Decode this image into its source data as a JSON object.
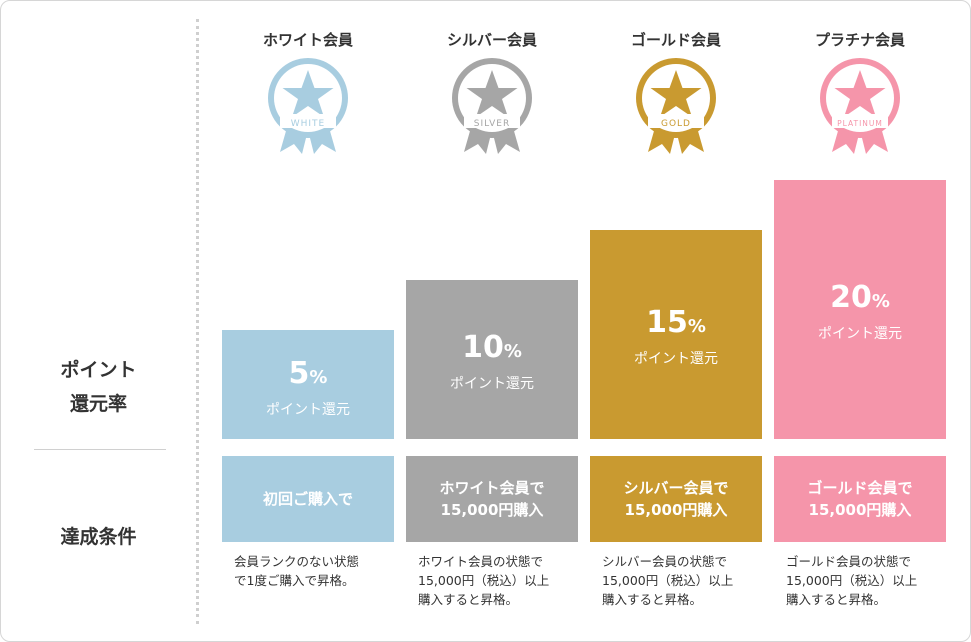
{
  "labels": {
    "rate_line1": "ポイント",
    "rate_line2": "還元率",
    "condition": "達成条件"
  },
  "tiers": [
    {
      "name": "ホワイト会員",
      "badge_text": "WHITE",
      "color": "#a8cde0",
      "rate_value": "5",
      "rate_unit": "%",
      "rate_label": "ポイント還元",
      "condition_line1": "初回ご購入で",
      "condition_line2": "",
      "description": "会員ランクのない状態\nで1度ご購入で昇格。",
      "rate_percent": 5
    },
    {
      "name": "シルバー会員",
      "badge_text": "SILVER",
      "color": "#a6a6a6",
      "rate_value": "10",
      "rate_unit": "%",
      "rate_label": "ポイント還元",
      "condition_line1": "ホワイト会員で",
      "condition_line2": "15,000円購入",
      "description": "ホワイト会員の状態で\n15,000円（税込）以上\n購入すると昇格。",
      "rate_percent": 10
    },
    {
      "name": "ゴールド会員",
      "badge_text": "GOLD",
      "color": "#c99a30",
      "rate_value": "15",
      "rate_unit": "%",
      "rate_label": "ポイント還元",
      "condition_line1": "シルバー会員で",
      "condition_line2": "15,000円購入",
      "description": "シルバー会員の状態で\n15,000円（税込）以上\n購入すると昇格。",
      "rate_percent": 15
    },
    {
      "name": "プラチナ会員",
      "badge_text": "PLATINUM",
      "color": "#f595aa",
      "rate_value": "20",
      "rate_unit": "%",
      "rate_label": "ポイント還元",
      "condition_line1": "ゴールド会員で",
      "condition_line2": "15,000円購入",
      "description": "ゴールド会員の状態で\n15,000円（税込）以上\n購入すると昇格。",
      "rate_percent": 20
    }
  ]
}
